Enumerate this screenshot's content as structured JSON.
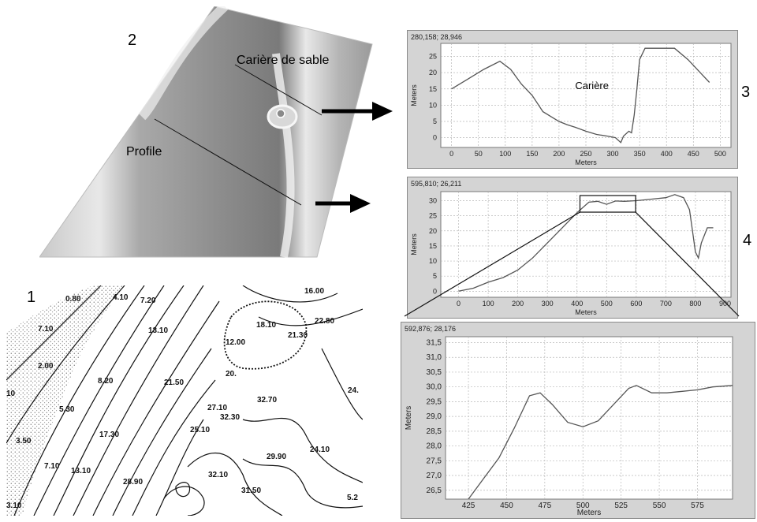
{
  "panel_labels": {
    "p1": "1",
    "p2": "2",
    "p3": "3",
    "p4": "4"
  },
  "dem_labels": {
    "quarry": "Carière de sable",
    "profile": "Profile"
  },
  "topo_contour_labels": [
    "0.80",
    "4.10",
    "7.20",
    "7.10",
    "13.10",
    "16.00",
    "18.10",
    "12.00",
    "21.30",
    "22.80",
    "2.00",
    "8.20",
    "21.50",
    "20.",
    "5.30",
    "27.10",
    "32.70",
    "3.50",
    "17.30",
    "25.10",
    "32.30",
    "24.",
    "7.10",
    "13.10",
    "24.10",
    "29.90",
    "28.90",
    "32.10",
    "10",
    "3.10",
    "31.50",
    "5.2"
  ],
  "chart_data": [
    {
      "type": "line",
      "coord_readout": "280,158; 28,946",
      "annotation": "Carière",
      "xlabel": "Meters",
      "ylabel": "Meters",
      "xlim": [
        -20,
        520
      ],
      "ylim": [
        -3,
        29
      ],
      "xticks": [
        0,
        50,
        100,
        150,
        200,
        250,
        300,
        350,
        400,
        450,
        500
      ],
      "yticks": [
        0,
        5,
        10,
        15,
        20,
        25
      ],
      "series": [
        {
          "x": [
            0,
            30,
            60,
            90,
            110,
            130,
            150,
            170,
            190,
            200,
            215,
            230,
            250,
            270,
            290,
            305,
            315,
            320,
            330,
            335,
            340,
            345,
            350,
            360,
            380,
            400,
            415,
            440,
            460,
            480
          ],
          "y": [
            15,
            18,
            21,
            23.5,
            21,
            16.5,
            13,
            8,
            6,
            5,
            4,
            3.2,
            2,
            1,
            0.5,
            0,
            -1.5,
            0.5,
            2,
            1.5,
            7,
            15,
            24,
            27.5,
            27.5,
            27.5,
            27.5,
            24,
            20.5,
            17
          ]
        }
      ],
      "grid": true
    },
    {
      "type": "line",
      "coord_readout": "595,810; 26,211",
      "xlabel": "Meters",
      "ylabel": "Meters",
      "xlim": [
        -60,
        920
      ],
      "ylim": [
        -2,
        33
      ],
      "xticks": [
        0,
        100,
        200,
        300,
        400,
        500,
        600,
        700,
        800,
        900
      ],
      "yticks": [
        0,
        5,
        10,
        15,
        20,
        25,
        30
      ],
      "series": [
        {
          "x": [
            0,
            50,
            100,
            150,
            200,
            250,
            300,
            350,
            400,
            440,
            470,
            500,
            530,
            560,
            600,
            650,
            700,
            730,
            760,
            780,
            790,
            800,
            810,
            820,
            840,
            860
          ],
          "y": [
            0,
            1,
            3,
            4.5,
            7,
            11,
            16,
            21,
            26,
            29.5,
            29.8,
            28.8,
            29.9,
            29.8,
            30,
            30.5,
            31,
            32,
            31,
            27,
            20,
            13,
            11,
            16,
            21,
            21
          ]
        }
      ],
      "grid": true
    },
    {
      "type": "line",
      "coord_readout": "592,876; 28,176",
      "xlabel": "Meters",
      "ylabel": "Meters",
      "xlim": [
        410,
        598
      ],
      "ylim": [
        26.2,
        31.7
      ],
      "xticks": [
        425,
        450,
        475,
        500,
        525,
        550,
        575
      ],
      "xtick_labels": [
        "425",
        "450",
        "475",
        "500",
        "525",
        "550",
        "575"
      ],
      "yticks": [
        26.5,
        27.0,
        27.5,
        28.0,
        28.5,
        29.0,
        29.5,
        30.0,
        30.5,
        31.0,
        31.5
      ],
      "ytick_labels": [
        "26,5",
        "27,0",
        "27,5",
        "28,0",
        "28,5",
        "29,0",
        "29,5",
        "30,0",
        "30,5",
        "31,0",
        "31,5"
      ],
      "series": [
        {
          "x": [
            425,
            435,
            445,
            455,
            465,
            472,
            480,
            490,
            500,
            510,
            520,
            530,
            535,
            545,
            555,
            565,
            575,
            585,
            598
          ],
          "y": [
            26.2,
            26.9,
            27.6,
            28.6,
            29.7,
            29.8,
            29.4,
            28.8,
            28.65,
            28.85,
            29.4,
            29.95,
            30.05,
            29.8,
            29.8,
            29.85,
            29.9,
            30.0,
            30.05
          ]
        }
      ],
      "grid": true
    }
  ]
}
